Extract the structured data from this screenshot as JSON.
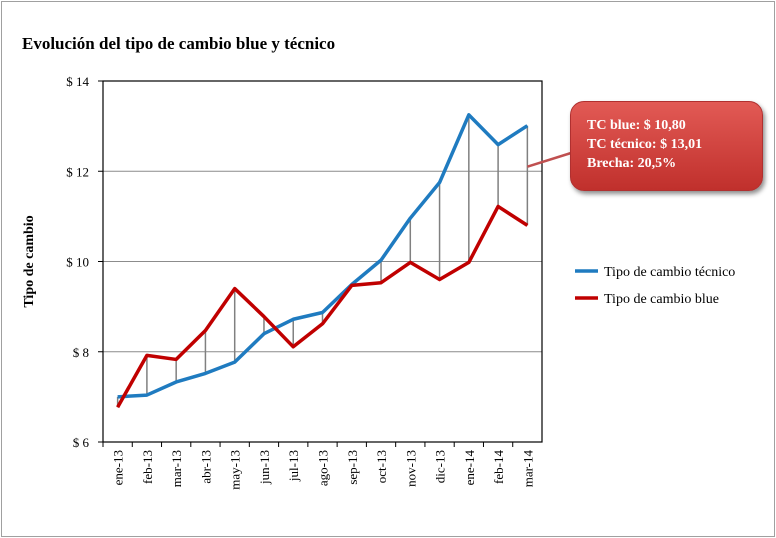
{
  "chart_data": {
    "type": "line",
    "title": "Evolución del tipo de cambio blue y técnico",
    "xlabel": "",
    "ylabel": "Tipo de cambio",
    "ylim": [
      6,
      14
    ],
    "yticks": [
      6,
      8,
      10,
      12,
      14
    ],
    "ytick_labels": [
      "$ 6",
      "$ 8",
      "$ 10",
      "$ 12",
      "$ 14"
    ],
    "grid": "horizontal",
    "legend_position": "right",
    "categories": [
      "ene-13",
      "feb-13",
      "mar-13",
      "abr-13",
      "may-13",
      "jun-13",
      "jul-13",
      "ago-13",
      "sep-13",
      "oct-13",
      "nov-13",
      "dic-13",
      "ene-14",
      "feb-14",
      "mar-14"
    ],
    "series": [
      {
        "name": "Tipo de cambio técnico",
        "color": "#1f7bc0",
        "values": [
          7.0,
          7.04,
          7.33,
          7.52,
          7.77,
          8.4,
          8.72,
          8.87,
          9.49,
          10.03,
          10.96,
          11.75,
          13.25,
          12.59,
          13.01
        ]
      },
      {
        "name": "Tipo de cambio blue",
        "color": "#c00000",
        "values": [
          6.77,
          7.92,
          7.83,
          8.47,
          9.4,
          8.78,
          8.11,
          8.62,
          9.47,
          9.53,
          9.98,
          9.6,
          9.98,
          11.22,
          10.8
        ]
      }
    ],
    "drop_lines_color": "#808080",
    "annotation": {
      "lines": [
        "TC blue:  $ 10,80",
        "TC  técnico: $ 13,01",
        "Brecha:  20,5%"
      ],
      "color": "#d04040"
    }
  }
}
